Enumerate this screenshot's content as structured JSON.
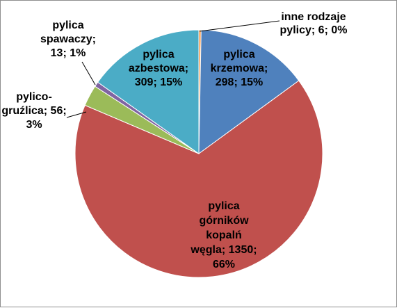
{
  "chart_data": {
    "type": "pie",
    "title": "",
    "slices": [
      {
        "name": "inne rodzaje pylicy",
        "value": 6,
        "percent": 0,
        "color": "#F79646",
        "label_lines": [
          "inne rodzaje",
          "pylicy; 6; 0%"
        ]
      },
      {
        "name": "pylica krzemowa",
        "value": 298,
        "percent": 15,
        "color": "#4F81BD",
        "label_lines": [
          "pylica",
          "krzemowa;",
          "298; 15%"
        ]
      },
      {
        "name": "pylica górników kopalń węgla",
        "value": 1350,
        "percent": 66,
        "color": "#C0504D",
        "label_lines": [
          "pylica",
          "górników",
          "kopalń",
          "węgla; 1350;",
          "66%"
        ]
      },
      {
        "name": "pylico-gruźlica",
        "value": 56,
        "percent": 3,
        "color": "#9BBB59",
        "label_lines": [
          "pylico-",
          "gruźlica; 56;",
          "3%"
        ]
      },
      {
        "name": "pylica spawaczy",
        "value": 13,
        "percent": 1,
        "color": "#8064A2",
        "label_lines": [
          "pylica",
          "spawaczy;",
          "13; 1%"
        ]
      },
      {
        "name": "pylica azbestowa",
        "value": 309,
        "percent": 15,
        "color": "#4BACC6",
        "label_lines": [
          "pylica",
          "azbestowa;",
          "309; 15%"
        ]
      }
    ],
    "start": "12 o'clock",
    "direction": "clockwise",
    "legend": "none"
  }
}
